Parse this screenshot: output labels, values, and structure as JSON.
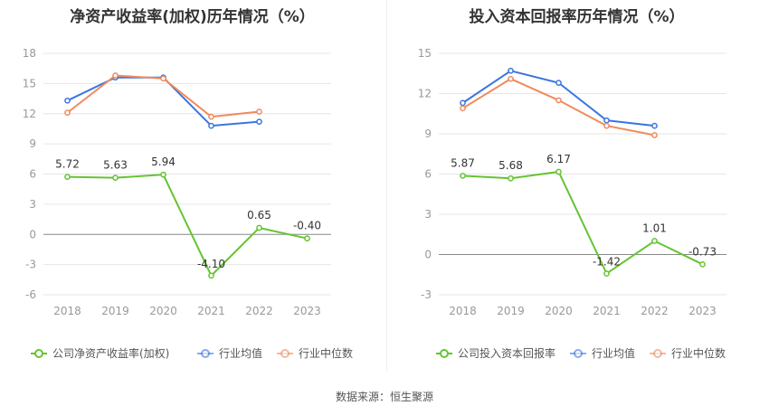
{
  "footer": "数据来源：恒生聚源",
  "colors": {
    "company": "#66c431",
    "industry_avg": "#3b75e0",
    "industry_median": "#f08a5d",
    "grid": "#e6e6e6",
    "axis": "#999999"
  },
  "chart_data": [
    {
      "type": "line",
      "title": "净资产收益率(加权)历年情况（%）",
      "categories": [
        "2018",
        "2019",
        "2020",
        "2021",
        "2022",
        "2023"
      ],
      "ylim": [
        -6,
        18
      ],
      "yticks": [
        -6,
        -3,
        0,
        3,
        6,
        9,
        12,
        15,
        18
      ],
      "grid": true,
      "legend_position": "bottom",
      "series": [
        {
          "name": "公司净资产收益率(加权)",
          "key": "company",
          "values": [
            5.72,
            5.63,
            5.94,
            -4.1,
            0.65,
            -0.4
          ],
          "labels": [
            "5.72",
            "5.63",
            "5.94",
            "-4.10",
            "0.65",
            "-0.40"
          ]
        },
        {
          "name": "行业均值",
          "key": "industry_avg",
          "values": [
            13.3,
            15.6,
            15.6,
            10.8,
            11.2,
            null
          ]
        },
        {
          "name": "行业中位数",
          "key": "industry_median",
          "values": [
            12.1,
            15.8,
            15.5,
            11.7,
            12.2,
            null
          ]
        }
      ]
    },
    {
      "type": "line",
      "title": "投入资本回报率历年情况（%）",
      "categories": [
        "2018",
        "2019",
        "2020",
        "2021",
        "2022",
        "2023"
      ],
      "ylim": [
        -3,
        15
      ],
      "yticks": [
        -3,
        0,
        3,
        6,
        9,
        12,
        15
      ],
      "grid": true,
      "legend_position": "bottom",
      "series": [
        {
          "name": "公司投入资本回报率",
          "key": "company",
          "values": [
            5.87,
            5.68,
            6.17,
            -1.42,
            1.01,
            -0.73
          ],
          "labels": [
            "5.87",
            "5.68",
            "6.17",
            "-1.42",
            "1.01",
            "-0.73"
          ]
        },
        {
          "name": "行业均值",
          "key": "industry_avg",
          "values": [
            11.3,
            13.7,
            12.8,
            10.0,
            9.6,
            null
          ]
        },
        {
          "name": "行业中位数",
          "key": "industry_median",
          "values": [
            10.9,
            13.1,
            11.5,
            9.6,
            8.9,
            null
          ]
        }
      ]
    }
  ]
}
